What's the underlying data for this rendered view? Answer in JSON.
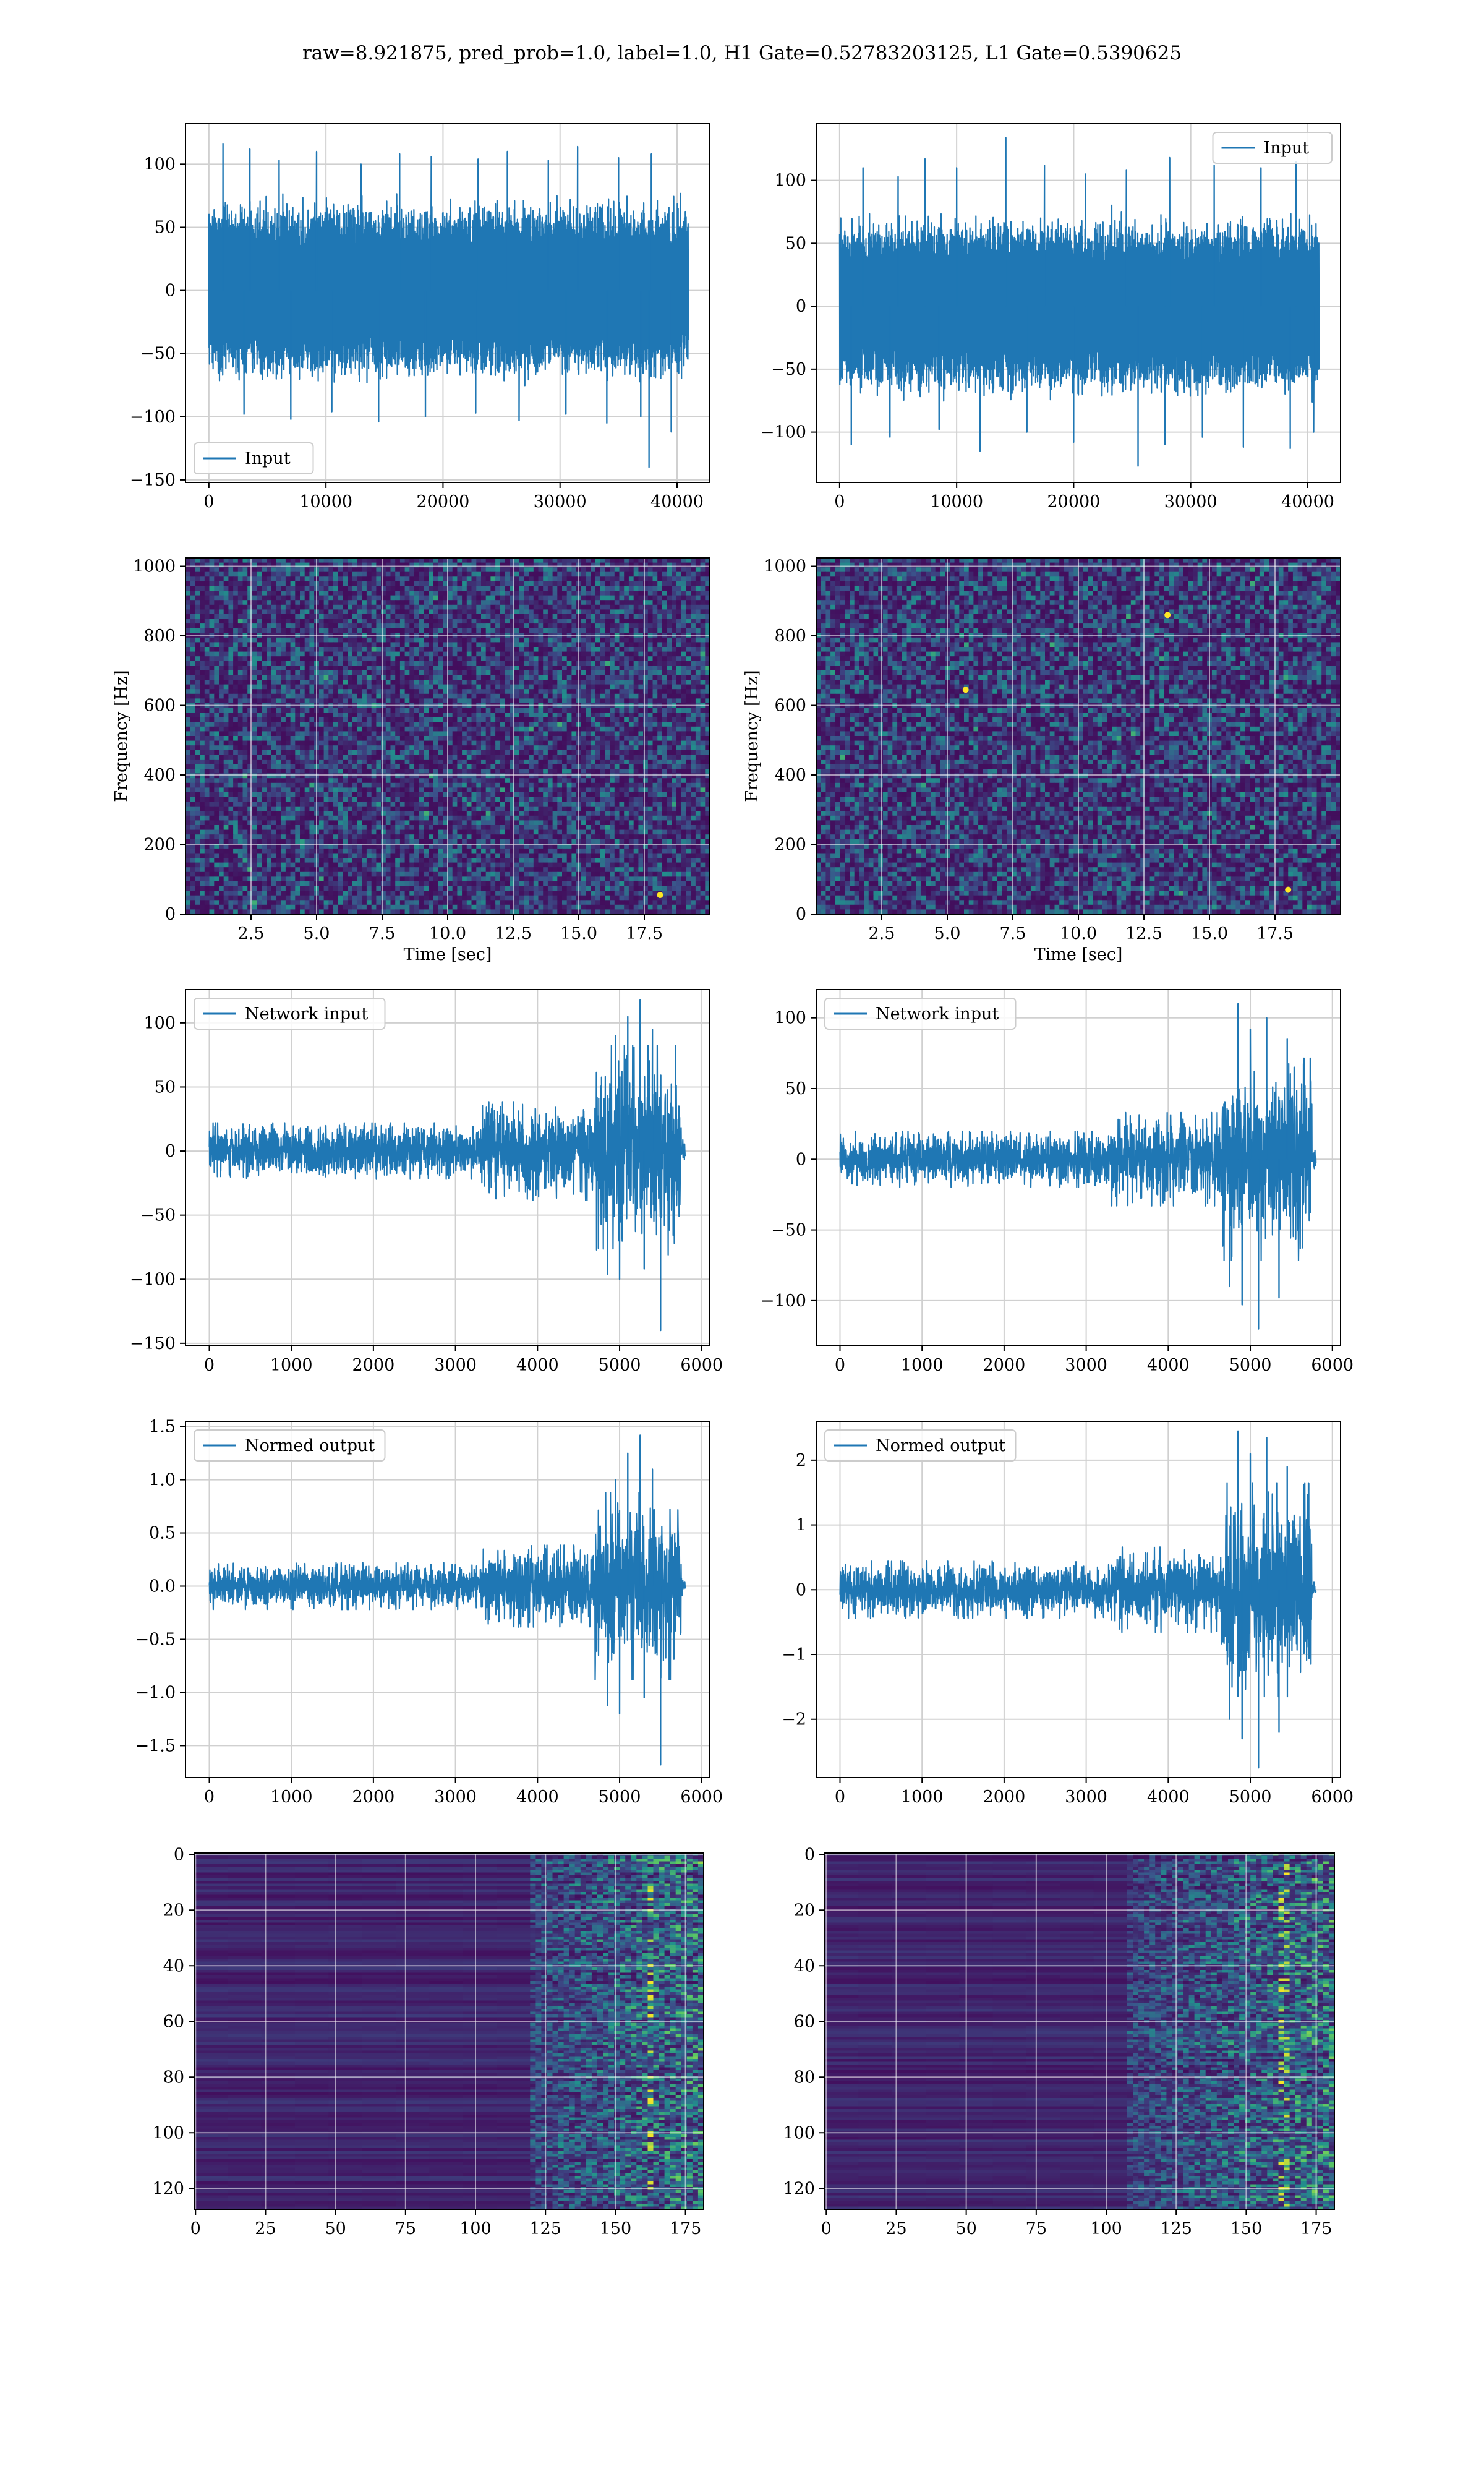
{
  "figure": {
    "title": "raw=8.921875, pred_prob=1.0, label=1.0, H1 Gate=0.52783203125, L1 Gate=0.5390625"
  },
  "colors": {
    "line": "#1f77b4",
    "grid": "#d0d0d0",
    "viridis_low": "#440154",
    "viridis_mid": "#3b528b",
    "viridis_teal": "#21918c",
    "viridis_green": "#5ec962",
    "viridis_high": "#fde725"
  },
  "chart_data": [
    {
      "id": "row1-left",
      "type": "line",
      "title": "",
      "xlabel": "",
      "ylabel": "",
      "legend": "lower-left",
      "grid": true,
      "xlim": [
        -2000,
        42800
      ],
      "ylim": [
        -152,
        132
      ],
      "xticks": [
        0,
        10000,
        20000,
        30000,
        40000
      ],
      "xtick_labels": [
        "0",
        "10000",
        "20000",
        "30000",
        "40000"
      ],
      "yticks": [
        -150,
        -100,
        -50,
        0,
        50,
        100
      ],
      "ytick_labels": [
        "−150",
        "−100",
        "−50",
        "0",
        "50",
        "100"
      ],
      "series": [
        {
          "name": "Input",
          "style": "dense-noise",
          "x_range": [
            0,
            40960
          ],
          "envelope": [
            -70,
            70
          ],
          "peaks_high": [
            [
              1200,
              116
            ],
            [
              3500,
              112
            ],
            [
              6000,
              103
            ],
            [
              9200,
              110
            ],
            [
              13000,
              100
            ],
            [
              16300,
              108
            ],
            [
              19000,
              106
            ],
            [
              23000,
              104
            ],
            [
              25500,
              110
            ],
            [
              29000,
              103
            ],
            [
              31500,
              114
            ],
            [
              35000,
              105
            ],
            [
              37800,
              108
            ]
          ],
          "peaks_low": [
            [
              3000,
              -98
            ],
            [
              7000,
              -102
            ],
            [
              10500,
              -96
            ],
            [
              14500,
              -104
            ],
            [
              18500,
              -100
            ],
            [
              22800,
              -97
            ],
            [
              26500,
              -103
            ],
            [
              30500,
              -98
            ],
            [
              34000,
              -105
            ],
            [
              36900,
              -100
            ],
            [
              37600,
              -140
            ],
            [
              39500,
              -112
            ]
          ]
        }
      ]
    },
    {
      "id": "row1-right",
      "type": "line",
      "title": "",
      "xlabel": "",
      "ylabel": "",
      "legend": "upper-right",
      "grid": true,
      "xlim": [
        -2000,
        42800
      ],
      "ylim": [
        -140,
        145
      ],
      "xticks": [
        0,
        10000,
        20000,
        30000,
        40000
      ],
      "xtick_labels": [
        "0",
        "10000",
        "20000",
        "30000",
        "40000"
      ],
      "yticks": [
        -100,
        -50,
        0,
        50,
        100
      ],
      "ytick_labels": [
        "−100",
        "−50",
        "0",
        "50",
        "100"
      ],
      "series": [
        {
          "name": "Input",
          "style": "dense-noise",
          "x_range": [
            0,
            40960
          ],
          "envelope": [
            -70,
            70
          ],
          "peaks_high": [
            [
              2000,
              110
            ],
            [
              5000,
              103
            ],
            [
              7300,
              117
            ],
            [
              10000,
              110
            ],
            [
              14200,
              134
            ],
            [
              17500,
              112
            ],
            [
              21000,
              105
            ],
            [
              24500,
              108
            ],
            [
              28200,
              118
            ],
            [
              32000,
              112
            ],
            [
              36000,
              110
            ],
            [
              39000,
              115
            ]
          ],
          "peaks_low": [
            [
              1000,
              -110
            ],
            [
              4300,
              -104
            ],
            [
              8500,
              -98
            ],
            [
              12000,
              -115
            ],
            [
              16000,
              -100
            ],
            [
              20000,
              -108
            ],
            [
              25500,
              -127
            ],
            [
              27800,
              -110
            ],
            [
              31000,
              -104
            ],
            [
              34500,
              -112
            ],
            [
              38500,
              -113
            ],
            [
              40500,
              -100
            ]
          ]
        }
      ]
    },
    {
      "id": "row2-left",
      "type": "heatmap",
      "title": "",
      "xlabel": "Time [sec]",
      "ylabel": "Frequency [Hz]",
      "grid": true,
      "xlim": [
        0,
        20
      ],
      "ylim": [
        0,
        1024
      ],
      "xticks": [
        2.5,
        5.0,
        7.5,
        10.0,
        12.5,
        15.0,
        17.5
      ],
      "xtick_labels": [
        "2.5",
        "5.0",
        "7.5",
        "10.0",
        "12.5",
        "15.0",
        "17.5"
      ],
      "yticks": [
        0,
        200,
        400,
        600,
        800,
        1000
      ],
      "ytick_labels": [
        "0",
        "200",
        "400",
        "600",
        "800",
        "1000"
      ],
      "style": "spectrogram-noise",
      "bright_spots": [
        [
          18.1,
          55
        ]
      ]
    },
    {
      "id": "row2-right",
      "type": "heatmap",
      "title": "",
      "xlabel": "Time [sec]",
      "ylabel": "Frequency [Hz]",
      "grid": true,
      "xlim": [
        0,
        20
      ],
      "ylim": [
        0,
        1024
      ],
      "xticks": [
        2.5,
        5.0,
        7.5,
        10.0,
        12.5,
        15.0,
        17.5
      ],
      "xtick_labels": [
        "2.5",
        "5.0",
        "7.5",
        "10.0",
        "12.5",
        "15.0",
        "17.5"
      ],
      "yticks": [
        0,
        200,
        400,
        600,
        800,
        1000
      ],
      "ytick_labels": [
        "0",
        "200",
        "400",
        "600",
        "800",
        "1000"
      ],
      "style": "spectrogram-noise",
      "bright_spots": [
        [
          5.7,
          645
        ],
        [
          13.4,
          860
        ],
        [
          18.0,
          70
        ]
      ]
    },
    {
      "id": "row3-left",
      "type": "line",
      "title": "",
      "xlabel": "",
      "ylabel": "",
      "legend": "upper-left",
      "grid": true,
      "xlim": [
        -290,
        6100
      ],
      "ylim": [
        -152,
        126
      ],
      "xticks": [
        0,
        1000,
        2000,
        3000,
        4000,
        5000,
        6000
      ],
      "xtick_labels": [
        "0",
        "1000",
        "2000",
        "3000",
        "4000",
        "5000",
        "6000"
      ],
      "yticks": [
        -150,
        -100,
        -50,
        0,
        50,
        100
      ],
      "ytick_labels": [
        "−150",
        "−100",
        "−50",
        "0",
        "50",
        "100"
      ],
      "series": [
        {
          "name": "Network input",
          "style": "chirp",
          "x_range": [
            0,
            5800
          ],
          "segments": [
            [
              0,
              3300,
              20
            ],
            [
              3300,
              4700,
              35
            ],
            [
              4700,
              5750,
              75
            ]
          ],
          "peaks_high": [
            [
              5250,
              118
            ],
            [
              5100,
              105
            ],
            [
              5400,
              95
            ],
            [
              4950,
              90
            ]
          ],
          "peaks_low": [
            [
              5500,
              -140
            ],
            [
              5000,
              -100
            ],
            [
              4850,
              -96
            ],
            [
              5300,
              -92
            ]
          ],
          "tail": [
            5750,
            5800,
            8
          ]
        }
      ]
    },
    {
      "id": "row3-right",
      "type": "line",
      "title": "",
      "xlabel": "",
      "ylabel": "",
      "legend": "upper-left",
      "grid": true,
      "xlim": [
        -290,
        6100
      ],
      "ylim": [
        -132,
        120
      ],
      "xticks": [
        0,
        1000,
        2000,
        3000,
        4000,
        5000,
        6000
      ],
      "xtick_labels": [
        "0",
        "1000",
        "2000",
        "3000",
        "4000",
        "5000",
        "6000"
      ],
      "yticks": [
        -100,
        -50,
        0,
        50,
        100
      ],
      "ytick_labels": [
        "−100",
        "−50",
        "0",
        "50",
        "100"
      ],
      "series": [
        {
          "name": "Network input",
          "style": "chirp",
          "x_range": [
            0,
            5800
          ],
          "segments": [
            [
              0,
              3300,
              18
            ],
            [
              3300,
              4650,
              30
            ],
            [
              4650,
              5750,
              65
            ]
          ],
          "peaks_high": [
            [
              4850,
              110
            ],
            [
              5200,
              100
            ],
            [
              5000,
              92
            ],
            [
              5450,
              85
            ]
          ],
          "peaks_low": [
            [
              5100,
              -120
            ],
            [
              4900,
              -103
            ],
            [
              5350,
              -98
            ],
            [
              4750,
              -90
            ]
          ],
          "tail": [
            5750,
            5800,
            6
          ]
        }
      ]
    },
    {
      "id": "row4-left",
      "type": "line",
      "title": "",
      "xlabel": "",
      "ylabel": "",
      "legend": "upper-left",
      "grid": true,
      "xlim": [
        -290,
        6100
      ],
      "ylim": [
        -1.8,
        1.55
      ],
      "xticks": [
        0,
        1000,
        2000,
        3000,
        4000,
        5000,
        6000
      ],
      "xtick_labels": [
        "0",
        "1000",
        "2000",
        "3000",
        "4000",
        "5000",
        "6000"
      ],
      "yticks": [
        -1.5,
        -1.0,
        -0.5,
        0.0,
        0.5,
        1.0,
        1.5
      ],
      "ytick_labels": [
        "−1.5",
        "−1.0",
        "−0.5",
        "0.0",
        "0.5",
        "1.0",
        "1.5"
      ],
      "series": [
        {
          "name": "Normed output",
          "style": "chirp",
          "x_range": [
            0,
            5800
          ],
          "segments": [
            [
              0,
              3300,
              0.2
            ],
            [
              3300,
              4700,
              0.35
            ],
            [
              4700,
              5750,
              0.8
            ]
          ],
          "peaks_high": [
            [
              5250,
              1.42
            ],
            [
              5100,
              1.25
            ],
            [
              5400,
              1.1
            ],
            [
              4950,
              1.0
            ]
          ],
          "peaks_low": [
            [
              5500,
              -1.68
            ],
            [
              5000,
              -1.2
            ],
            [
              4850,
              -1.12
            ],
            [
              5300,
              -1.05
            ]
          ],
          "tail": [
            5750,
            5800,
            0.08
          ]
        }
      ]
    },
    {
      "id": "row4-right",
      "type": "line",
      "title": "",
      "xlabel": "",
      "ylabel": "",
      "legend": "upper-left",
      "grid": true,
      "xlim": [
        -290,
        6100
      ],
      "ylim": [
        -2.9,
        2.6
      ],
      "xticks": [
        0,
        1000,
        2000,
        3000,
        4000,
        5000,
        6000
      ],
      "xtick_labels": [
        "0",
        "1000",
        "2000",
        "3000",
        "4000",
        "5000",
        "6000"
      ],
      "yticks": [
        -2,
        -1,
        0,
        1,
        2
      ],
      "ytick_labels": [
        "−2",
        "−1",
        "0",
        "1",
        "2"
      ],
      "series": [
        {
          "name": "Normed output",
          "style": "chirp",
          "x_range": [
            0,
            5800
          ],
          "segments": [
            [
              0,
              3300,
              0.4
            ],
            [
              3300,
              4650,
              0.6
            ],
            [
              4650,
              5750,
              1.5
            ]
          ],
          "peaks_high": [
            [
              4850,
              2.45
            ],
            [
              5200,
              2.35
            ],
            [
              5000,
              2.1
            ],
            [
              5450,
              1.9
            ]
          ],
          "peaks_low": [
            [
              5100,
              -2.75
            ],
            [
              4900,
              -2.3
            ],
            [
              5350,
              -2.2
            ],
            [
              4750,
              -2.0
            ]
          ],
          "tail": [
            5750,
            5800,
            0.12
          ]
        }
      ]
    },
    {
      "id": "row5-left",
      "type": "heatmap",
      "title": "",
      "xlabel": "",
      "ylabel": "",
      "grid": true,
      "xlim": [
        -0.5,
        181.5
      ],
      "ylim": [
        127.5,
        -0.5
      ],
      "xticks": [
        0,
        25,
        50,
        75,
        100,
        125,
        150,
        175
      ],
      "xtick_labels": [
        "0",
        "25",
        "50",
        "75",
        "100",
        "125",
        "150",
        "175"
      ],
      "yticks": [
        0,
        20,
        40,
        60,
        80,
        100,
        120
      ],
      "ytick_labels": [
        "0",
        "20",
        "40",
        "60",
        "80",
        "100",
        "120"
      ],
      "style": "feature-map",
      "onset_col": 110,
      "bright_col": 162
    },
    {
      "id": "row5-right",
      "type": "heatmap",
      "title": "",
      "xlabel": "",
      "ylabel": "",
      "grid": true,
      "xlim": [
        -0.5,
        181.5
      ],
      "ylim": [
        127.5,
        -0.5
      ],
      "xticks": [
        0,
        25,
        50,
        75,
        100,
        125,
        150,
        175
      ],
      "xtick_labels": [
        "0",
        "25",
        "50",
        "75",
        "100",
        "125",
        "150",
        "175"
      ],
      "yticks": [
        0,
        20,
        40,
        60,
        80,
        100,
        120
      ],
      "ytick_labels": [
        "0",
        "20",
        "40",
        "60",
        "80",
        "100",
        "120"
      ],
      "style": "feature-map",
      "onset_col": 105,
      "bright_col": 163
    }
  ]
}
